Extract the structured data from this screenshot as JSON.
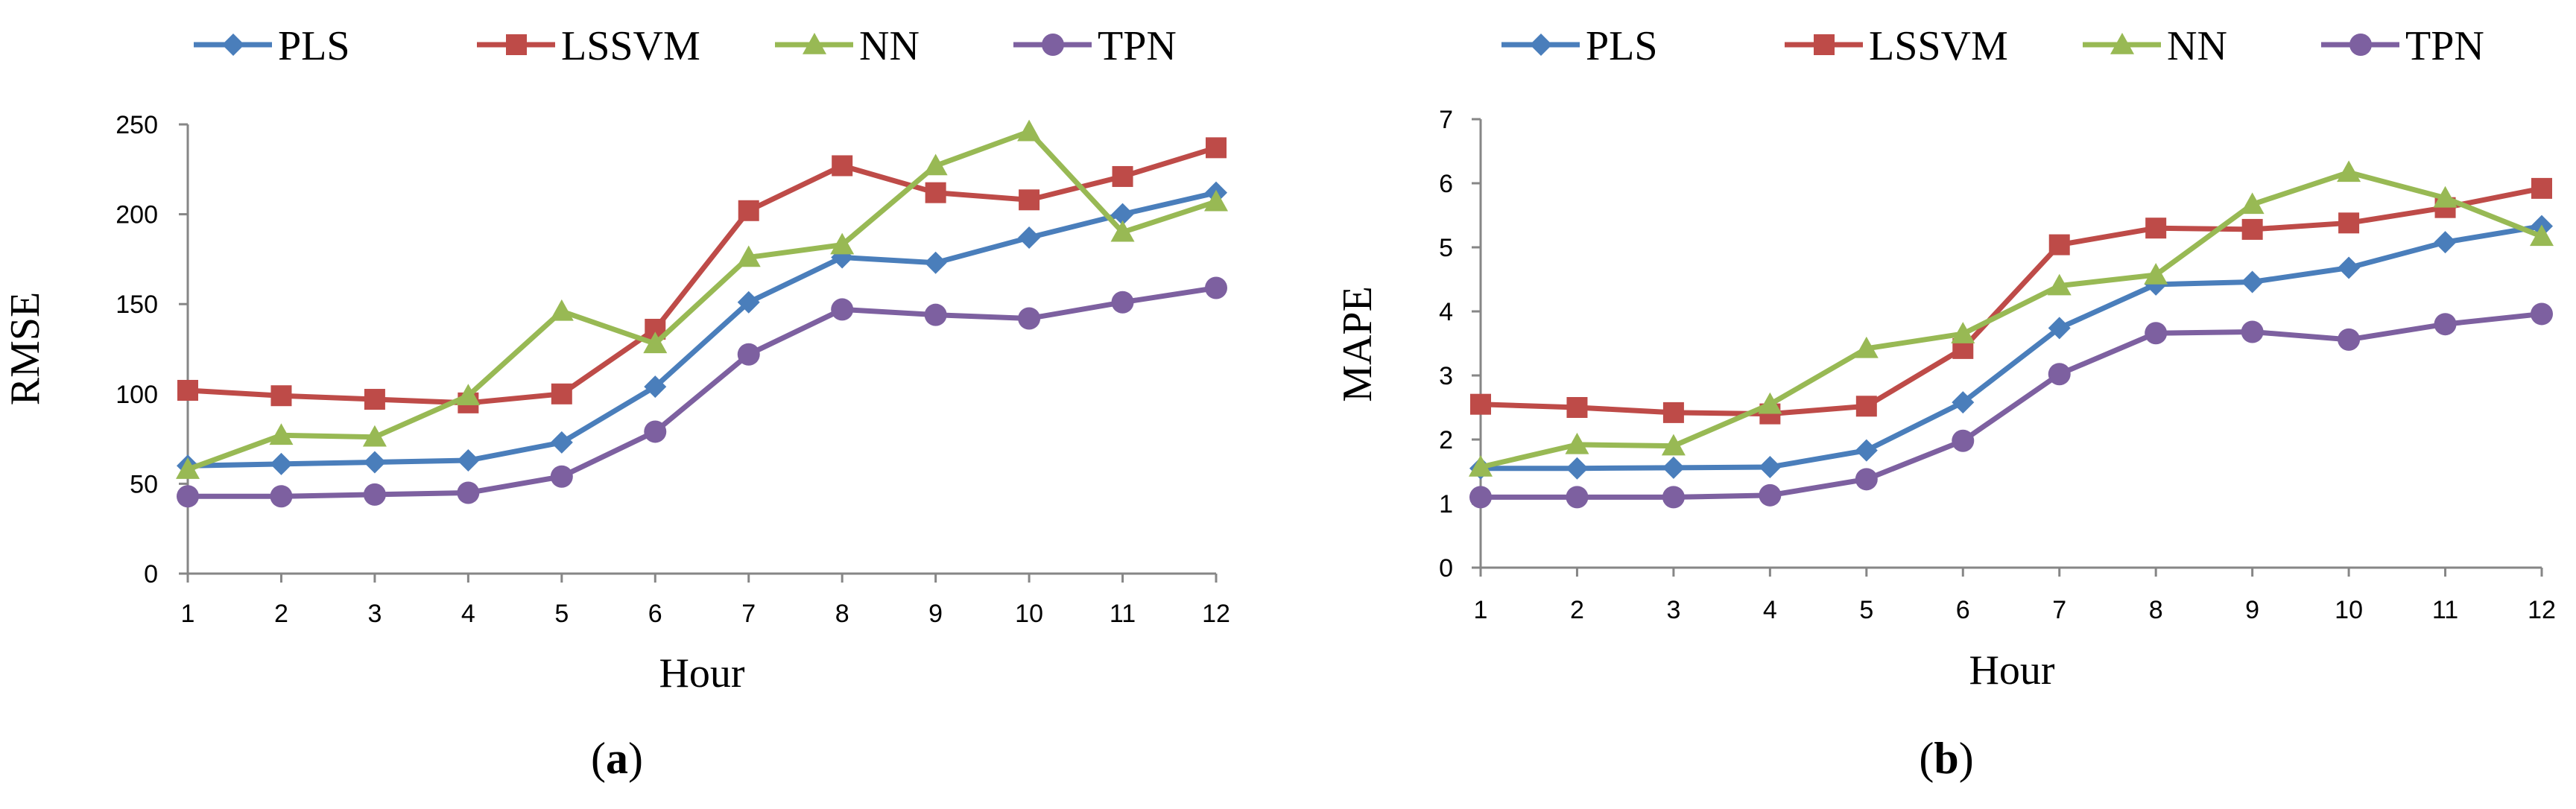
{
  "colors": {
    "PLS": "#4a7ebb",
    "LSSVM": "#be4b48",
    "NN": "#98b954",
    "TPN": "#7d60a0",
    "axis": "#868686",
    "text": "#000000"
  },
  "chart_data": [
    {
      "type": "line",
      "panel_label": "(a)",
      "panel_letter": "a",
      "xlabel": "Hour",
      "ylabel": "RMSE",
      "ylim": [
        0,
        250
      ],
      "yticks": [
        0,
        50,
        100,
        150,
        200,
        250
      ],
      "legend_position": "top",
      "categories": [
        "1",
        "2",
        "3",
        "4",
        "5",
        "6",
        "7",
        "8",
        "9",
        "10",
        "11",
        "12"
      ],
      "series": [
        {
          "name": "PLS",
          "marker": "diamond",
          "values": [
            60,
            61,
            62,
            63,
            73,
            104,
            151,
            176,
            173,
            187,
            200,
            212
          ]
        },
        {
          "name": "LSSVM",
          "marker": "square",
          "values": [
            102,
            99,
            97,
            95,
            100,
            136,
            202,
            227,
            212,
            208,
            221,
            237
          ]
        },
        {
          "name": "NN",
          "marker": "triangle",
          "values": [
            58,
            77,
            76,
            99,
            146,
            128,
            176,
            183,
            227,
            246,
            190,
            207
          ]
        },
        {
          "name": "TPN",
          "marker": "circle",
          "values": [
            43,
            43,
            44,
            45,
            54,
            79,
            122,
            147,
            144,
            142,
            151,
            159
          ]
        }
      ]
    },
    {
      "type": "line",
      "panel_label": "(b)",
      "panel_letter": "b",
      "xlabel": "Hour",
      "ylabel": "MAPE",
      "ylim": [
        0,
        7
      ],
      "yticks": [
        0,
        1,
        2,
        3,
        4,
        5,
        6,
        7
      ],
      "legend_position": "top",
      "categories": [
        "1",
        "2",
        "3",
        "4",
        "5",
        "6",
        "7",
        "8",
        "9",
        "10",
        "11",
        "12"
      ],
      "series": [
        {
          "name": "PLS",
          "marker": "diamond",
          "values": [
            1.55,
            1.55,
            1.56,
            1.57,
            1.83,
            2.58,
            3.74,
            4.42,
            4.46,
            4.68,
            5.08,
            5.33
          ]
        },
        {
          "name": "LSSVM",
          "marker": "square",
          "values": [
            2.55,
            2.5,
            2.42,
            2.4,
            2.52,
            3.42,
            5.04,
            5.3,
            5.28,
            5.38,
            5.62,
            5.92
          ]
        },
        {
          "name": "NN",
          "marker": "triangle",
          "values": [
            1.57,
            1.92,
            1.9,
            2.55,
            3.42,
            3.65,
            4.4,
            4.57,
            5.67,
            6.17,
            5.77,
            5.17
          ]
        },
        {
          "name": "TPN",
          "marker": "circle",
          "values": [
            1.1,
            1.1,
            1.1,
            1.13,
            1.38,
            1.98,
            3.02,
            3.66,
            3.68,
            3.56,
            3.8,
            3.96
          ]
        }
      ]
    }
  ]
}
